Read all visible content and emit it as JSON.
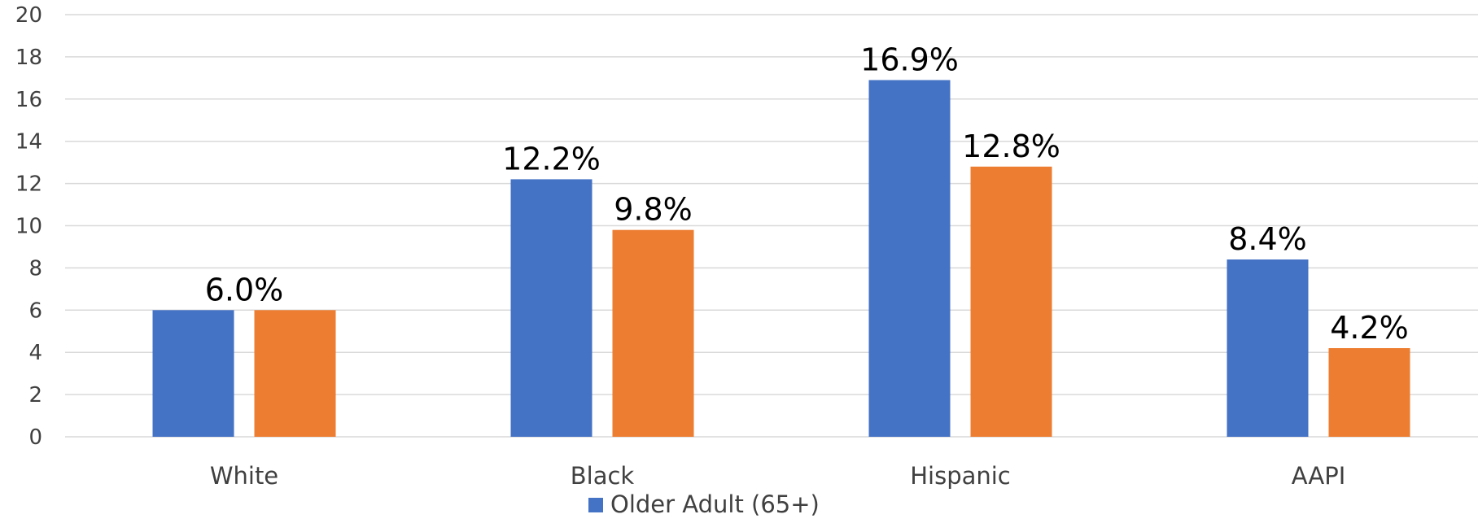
{
  "chart_data": {
    "type": "bar",
    "categories": [
      "White",
      "Black",
      "Hispanic",
      "AAPI"
    ],
    "series": [
      {
        "name": "Older Adult (65+)",
        "values": [
          6.0,
          12.2,
          16.9,
          8.4
        ],
        "labels": [
          "",
          "12.2%",
          "16.9%",
          "8.4%"
        ],
        "color": "#4472C4"
      },
      {
        "values": [
          6.0,
          9.8,
          12.8,
          4.2
        ],
        "labels": [
          "6.0%",
          "9.8%",
          "12.8%",
          "4.2%"
        ],
        "color": "#ED7D31"
      }
    ],
    "ylim": [
      0,
      20
    ],
    "yticks": [
      "0",
      "2",
      "4",
      "6",
      "8",
      "10",
      "12",
      "14",
      "16",
      "18",
      "20"
    ],
    "grid": true,
    "legend": {
      "position": "bottom",
      "entries": [
        {
          "label": "Older Adult (65+)",
          "color": "#4472C4"
        }
      ]
    },
    "gridline_color": "#D9D9D9",
    "text_color": "#000000",
    "axis_text_color": "#404040"
  }
}
